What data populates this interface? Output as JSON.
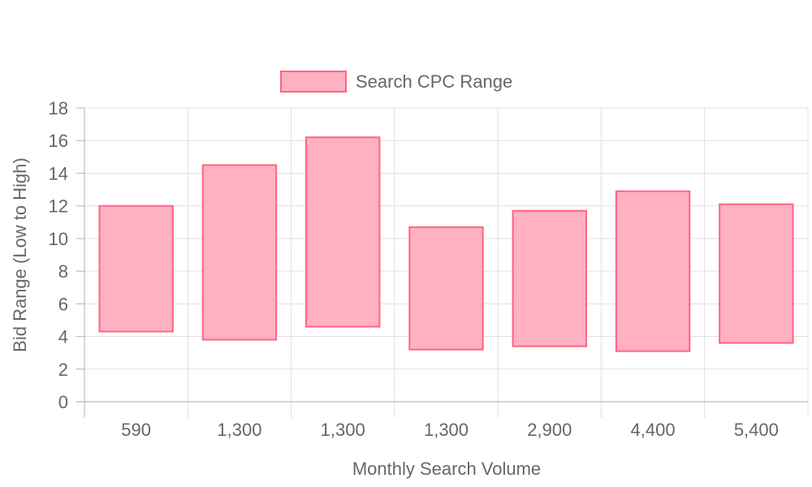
{
  "chart_data": {
    "type": "bar",
    "subtype": "floating-range",
    "categories": [
      "590",
      "1,300",
      "1,300",
      "1,300",
      "2,900",
      "4,400",
      "5,400"
    ],
    "series": [
      {
        "name": "Search CPC Range",
        "low": [
          4.3,
          3.8,
          4.6,
          3.2,
          3.4,
          3.1,
          3.6
        ],
        "high": [
          12.0,
          14.5,
          16.2,
          10.7,
          11.7,
          12.9,
          12.1
        ],
        "fill_color": "#ffb1c1",
        "border_color": "#ff6384"
      }
    ],
    "xlabel": "Monthly Search Volume",
    "ylabel": "Bid Range (Low to High)",
    "ylim": [
      0,
      18
    ],
    "yticks": [
      "0",
      "2",
      "4",
      "6",
      "8",
      "10",
      "12",
      "14",
      "16",
      "18"
    ],
    "grid": true,
    "legend_position": "top"
  }
}
